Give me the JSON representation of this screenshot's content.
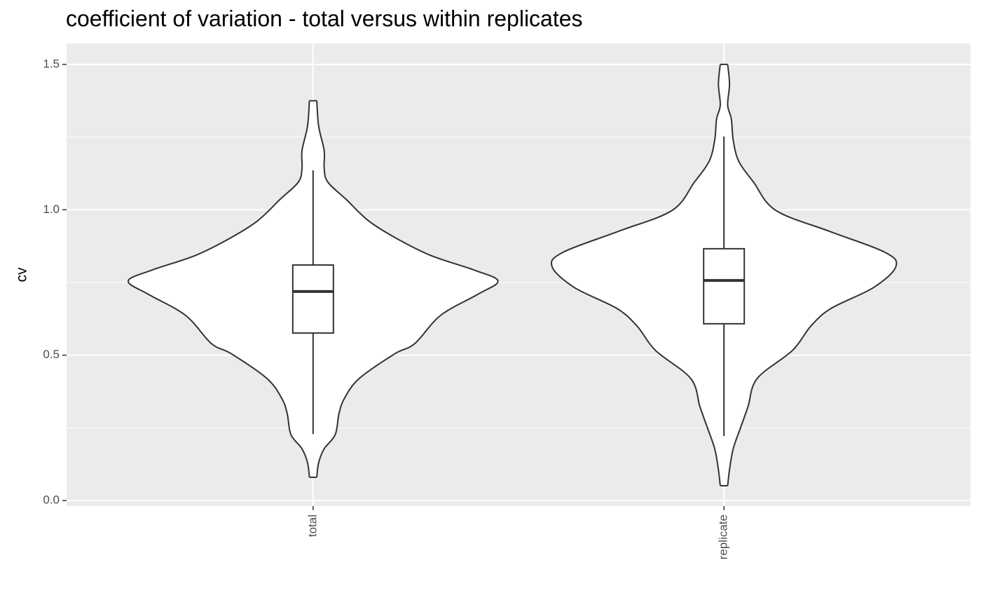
{
  "chart_data": {
    "type": "violin",
    "title": "coefficient of variation - total versus within replicates",
    "y_label": "cv",
    "categories": [
      "total",
      "replicate"
    ],
    "ylim": [
      -0.019,
      1.572
    ],
    "yticks": [
      {
        "value": 0,
        "label": "0.0"
      },
      0.5,
      {
        "value": 1,
        "label": "1.0"
      },
      1.5
    ],
    "minor_yticks": [
      0.25,
      0.75,
      1.25
    ],
    "grid": true,
    "violins": [
      {
        "y": [
          1.375,
          1.288,
          1.203,
          1.143,
          1.095,
          1.035,
          0.962,
          0.902,
          0.842,
          0.793,
          0.755,
          0.709,
          0.637,
          0.54,
          0.504,
          0.42,
          0.352,
          0.299,
          0.227,
          0.178,
          0.13,
          0.08
        ],
        "density": [
          0.02,
          0.03,
          0.06,
          0.06,
          0.08,
          0.18,
          0.3,
          0.45,
          0.64,
          0.87,
          1.0,
          0.89,
          0.69,
          0.55,
          0.44,
          0.25,
          0.17,
          0.14,
          0.12,
          0.06,
          0.03,
          0.02
        ]
      },
      {
        "y": [
          1.5,
          1.432,
          1.36,
          1.312,
          1.24,
          1.167,
          1.095,
          0.998,
          0.926,
          0.854,
          0.805,
          0.733,
          0.661,
          0.6,
          0.516,
          0.42,
          0.323,
          0.251,
          0.178,
          0.106,
          0.051
        ],
        "density": [
          0.02,
          0.03,
          0.02,
          0.04,
          0.05,
          0.08,
          0.16,
          0.28,
          0.57,
          0.87,
          0.93,
          0.81,
          0.58,
          0.47,
          0.37,
          0.18,
          0.13,
          0.09,
          0.05,
          0.03,
          0.02
        ]
      }
    ],
    "boxes": [
      {
        "whisker_low": 0.229,
        "q1": 0.576,
        "median": 0.719,
        "q3": 0.81,
        "whisker_high": 1.136
      },
      {
        "whisker_low": 0.222,
        "q1": 0.608,
        "median": 0.757,
        "q3": 0.866,
        "whisker_high": 1.252
      }
    ]
  }
}
